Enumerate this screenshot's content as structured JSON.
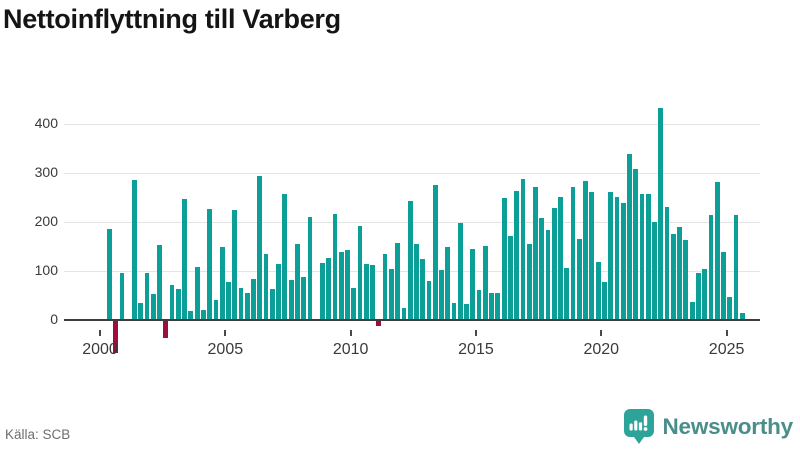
{
  "footer": {
    "source": "Källa: SCB",
    "brand": "Newsworthy"
  },
  "colors": {
    "positive_bar": "#0b9f98",
    "negative_bar": "#9e0c40",
    "gridline": "#e4e4e4",
    "baseline": "#3d3d3d",
    "axis_text": "#3a3a3a",
    "title_text": "#151515",
    "source_text": "#6e6e6e",
    "brand_badge": "#2ea39a",
    "brand_text": "#4a8e8a"
  },
  "chart_data": {
    "type": "bar",
    "title": "Nettoinflyttning till Varberg",
    "frequency": "quarterly",
    "start_period": "2000 Q1",
    "end_period": "2025 Q3",
    "x_tick_labels": [
      "2000",
      "2005",
      "2010",
      "2015",
      "2020",
      "2025"
    ],
    "y_tick_labels": [
      "0",
      "100",
      "200",
      "300",
      "400"
    ],
    "y_ticks": [
      0,
      100,
      200,
      300,
      400
    ],
    "ylim": [
      -85,
      445
    ],
    "grid": true,
    "legend": false,
    "series": [
      {
        "name": "Nettoinflyttning",
        "values": [
          0,
          185,
          -67,
          96,
          0,
          286,
          34,
          96,
          53,
          153,
          -36,
          72,
          63,
          248,
          18,
          108,
          21,
          226,
          40,
          150,
          77,
          224,
          66,
          55,
          84,
          295,
          134,
          63,
          114,
          257,
          81,
          156,
          87,
          211,
          0,
          116,
          127,
          216,
          138,
          144,
          66,
          193,
          114,
          113,
          -12,
          135,
          104,
          157,
          24,
          244,
          156,
          125,
          80,
          275,
          103,
          149,
          35,
          199,
          32,
          145,
          62,
          152,
          56,
          56,
          249,
          171,
          264,
          288,
          156,
          272,
          209,
          183,
          228,
          251,
          106,
          271,
          166,
          284,
          262,
          118,
          77,
          262,
          251,
          240,
          340,
          308,
          257,
          258,
          200,
          433,
          231,
          175,
          190,
          164,
          36,
          97,
          104,
          214,
          282,
          138,
          46,
          214,
          15
        ]
      }
    ]
  }
}
